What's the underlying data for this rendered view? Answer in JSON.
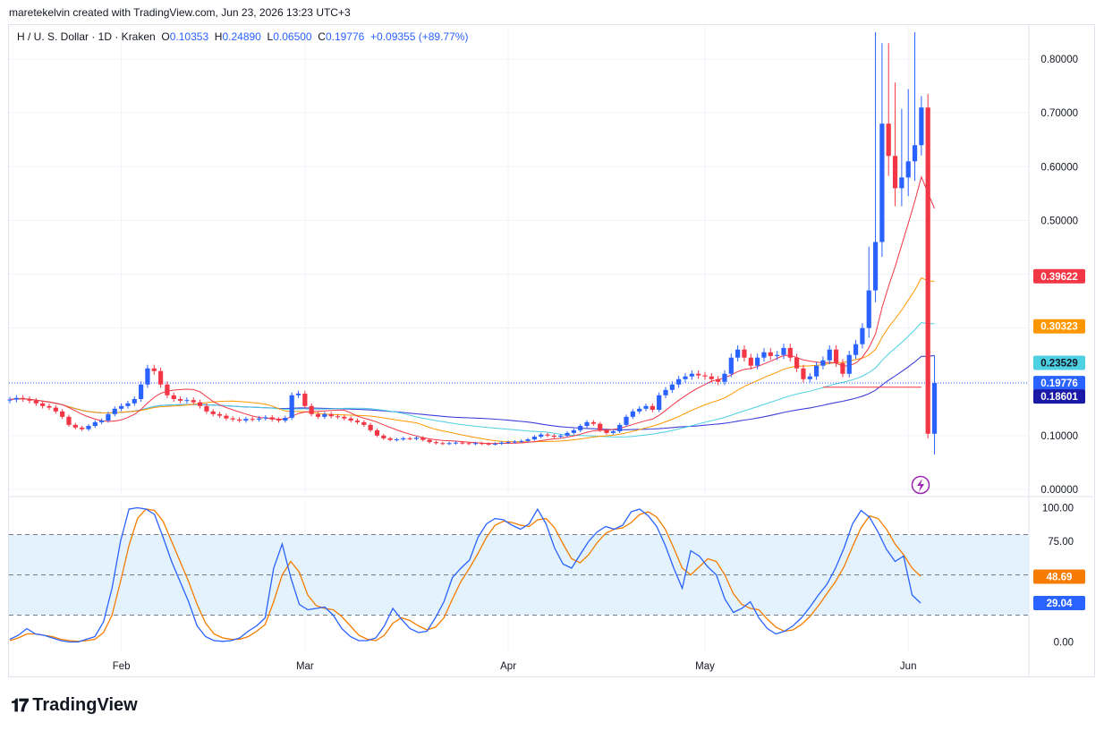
{
  "header": {
    "attribution": "maretekelvin created with TradingView.com, Jun 23, 2026 13:23 UTC+3"
  },
  "legend": {
    "symbol": "H / U. S. Dollar · 1D · Kraken",
    "o_label": "O",
    "o_value": "0.10353",
    "h_label": "H",
    "h_value": "0.24890",
    "l_label": "L",
    "l_value": "0.06500",
    "c_label": "C",
    "c_value": "0.19776",
    "change": "+0.09355 (+89.77%)"
  },
  "logo": {
    "text": "TradingView"
  },
  "colors": {
    "up": "#2962ff",
    "down": "#f23645",
    "ma_fast": "#f23645",
    "ma_mid": "#ff9800",
    "ma_slow": "#4dd0e1",
    "ma_long": "#3f3fd8",
    "stoch_k": "#2962ff",
    "stoch_d": "#f57c00",
    "band_fill": "#e3f2fd",
    "grid": "#f0f3fa"
  },
  "chart_data": {
    "type": "candlestick",
    "price_axis": {
      "ticks": [
        "0.80000",
        "0.70000",
        "0.60000",
        "0.50000",
        "0.10000",
        "0.00000"
      ],
      "tick_values": [
        0.8,
        0.7,
        0.6,
        0.5,
        0.1,
        0.0
      ],
      "range": [
        -0.01,
        0.86
      ]
    },
    "osc_axis": {
      "ticks": [
        "100.00",
        "75.00",
        "0.00"
      ],
      "tick_values": [
        100,
        75,
        0
      ],
      "range": [
        -7,
        105
      ],
      "band": [
        20,
        80
      ],
      "mid": 50
    },
    "time_axis": {
      "labels": [
        "Feb",
        "Mar",
        "Apr",
        "May",
        "Jun"
      ],
      "label_day_index": [
        17,
        45,
        76,
        106,
        137
      ]
    },
    "last_close": 0.19776,
    "price_tags": [
      {
        "text": "0.39622",
        "value": 0.39622,
        "color": "#f23645",
        "textColor": "#ffffff"
      },
      {
        "text": "0.30323",
        "value": 0.30323,
        "color": "#ff9800",
        "textColor": "#ffffff"
      },
      {
        "text": "0.23529",
        "value": 0.23529,
        "color": "#4dd0e1",
        "textColor": "#131722"
      },
      {
        "text": "0.19776",
        "value": 0.19776,
        "color": "#2962ff",
        "textColor": "#ffffff"
      },
      {
        "text": "0.18601",
        "value": 0.18601,
        "color": "#1a1aa6",
        "textColor": "#ffffff"
      }
    ],
    "osc_tags": [
      {
        "text": "48.69",
        "value": 48.69,
        "color": "#f57c00",
        "textColor": "#ffffff"
      },
      {
        "text": "29.04",
        "value": 29.04,
        "color": "#2962ff",
        "textColor": "#ffffff"
      }
    ],
    "closes": [
      0.167,
      0.17,
      0.168,
      0.165,
      0.16,
      0.155,
      0.152,
      0.145,
      0.135,
      0.12,
      0.115,
      0.112,
      0.118,
      0.125,
      0.128,
      0.14,
      0.15,
      0.155,
      0.16,
      0.168,
      0.195,
      0.225,
      0.22,
      0.195,
      0.175,
      0.168,
      0.165,
      0.166,
      0.162,
      0.155,
      0.145,
      0.14,
      0.137,
      0.132,
      0.13,
      0.128,
      0.131,
      0.13,
      0.132,
      0.134,
      0.13,
      0.128,
      0.133,
      0.175,
      0.178,
      0.155,
      0.14,
      0.135,
      0.14,
      0.136,
      0.135,
      0.132,
      0.128,
      0.125,
      0.12,
      0.11,
      0.1,
      0.095,
      0.092,
      0.093,
      0.095,
      0.094,
      0.096,
      0.092,
      0.088,
      0.086,
      0.085,
      0.086,
      0.087,
      0.086,
      0.085,
      0.086,
      0.085,
      0.084,
      0.085,
      0.087,
      0.088,
      0.089,
      0.09,
      0.093,
      0.098,
      0.102,
      0.1,
      0.098,
      0.1,
      0.105,
      0.11,
      0.118,
      0.125,
      0.122,
      0.11,
      0.105,
      0.108,
      0.12,
      0.135,
      0.145,
      0.15,
      0.155,
      0.148,
      0.175,
      0.185,
      0.195,
      0.205,
      0.21,
      0.215,
      0.212,
      0.21,
      0.205,
      0.2,
      0.215,
      0.245,
      0.26,
      0.245,
      0.23,
      0.245,
      0.255,
      0.248,
      0.25,
      0.263,
      0.245,
      0.225,
      0.205,
      0.21,
      0.23,
      0.24,
      0.26,
      0.235,
      0.215,
      0.25,
      0.27,
      0.3,
      0.37,
      0.46,
      0.68,
      0.62,
      0.56,
      0.58,
      0.61,
      0.64,
      0.71,
      0.1035,
      0.19776
    ],
    "stoch": {
      "k": [
        2,
        5,
        10,
        6,
        5,
        3,
        1,
        0,
        0,
        2,
        4,
        15,
        40,
        75,
        99,
        100,
        99,
        95,
        78,
        60,
        45,
        30,
        12,
        4,
        1,
        0.5,
        1,
        3,
        8,
        12,
        18,
        55,
        73,
        48,
        28,
        24,
        25,
        26,
        20,
        10,
        4,
        1,
        1,
        3,
        12,
        25,
        17,
        10,
        7,
        8,
        18,
        30,
        48,
        55,
        61,
        78,
        88,
        92,
        91,
        87,
        84,
        88,
        99,
        88,
        70,
        58,
        55,
        65,
        75,
        82,
        86,
        84,
        87,
        97,
        99,
        94,
        86,
        72,
        55,
        40,
        68,
        64,
        56,
        50,
        32,
        22,
        25,
        30,
        18,
        10,
        6,
        8,
        12,
        18,
        26,
        35,
        43,
        55,
        70,
        88,
        98,
        93,
        82,
        69,
        60,
        64,
        35,
        29
      ],
      "d": [
        1,
        3,
        6,
        6,
        5,
        4,
        2,
        1,
        0.5,
        1,
        2,
        7,
        20,
        45,
        72,
        92,
        99,
        98,
        90,
        75,
        60,
        45,
        28,
        14,
        6,
        3,
        2,
        2,
        4,
        8,
        13,
        30,
        50,
        60,
        52,
        35,
        27,
        25,
        24,
        19,
        12,
        5,
        2,
        1,
        5,
        14,
        18,
        16,
        12,
        9,
        11,
        18,
        32,
        45,
        55,
        66,
        78,
        87,
        90,
        89,
        87,
        86,
        91,
        92,
        85,
        73,
        62,
        59,
        65,
        74,
        81,
        84,
        85,
        89,
        95,
        97,
        93,
        84,
        70,
        55,
        50,
        56,
        62,
        60,
        50,
        36,
        28,
        25,
        24,
        17,
        11,
        8,
        9,
        13,
        19,
        27,
        36,
        45,
        56,
        71,
        85,
        94,
        92,
        84,
        73,
        65,
        55,
        49
      ]
    }
  }
}
